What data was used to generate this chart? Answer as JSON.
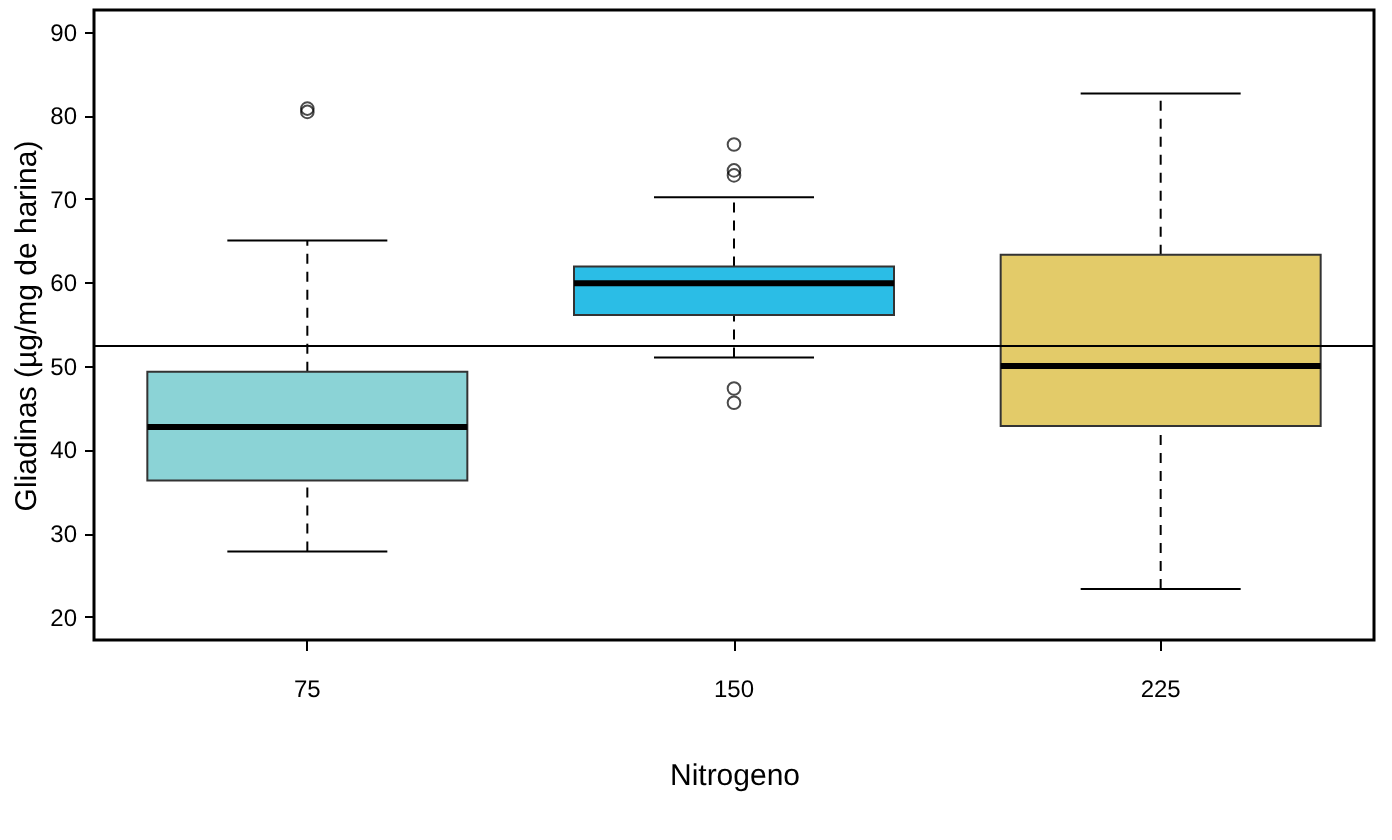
{
  "chart_data": {
    "type": "box",
    "xlabel": "Nitrogeno",
    "ylabel": "Gliadinas (µg/mg de harina)",
    "categories": [
      "75",
      "150",
      "225"
    ],
    "colors": [
      "#8bd3d6",
      "#2bbde6",
      "#e3cb69"
    ],
    "boxes": [
      {
        "low": 27.8,
        "q1": 36.3,
        "median": 42.7,
        "q3": 49.3,
        "high": 65.0,
        "outliers": [
          80.4,
          80.8
        ]
      },
      {
        "low": 51.0,
        "q1": 56.1,
        "median": 59.9,
        "q3": 61.9,
        "high": 70.2,
        "outliers": [
          76.5,
          73.4,
          72.8,
          47.3,
          45.6
        ]
      },
      {
        "low": 23.3,
        "q1": 42.8,
        "median": 50.0,
        "q3": 63.3,
        "high": 82.6
      }
    ],
    "ylim": [
      17.2,
      92.6
    ],
    "yticks": [
      20,
      30,
      40,
      50,
      60,
      70,
      80,
      90
    ],
    "ref_lines": [
      {
        "axis": "y",
        "value": 52.4
      }
    ]
  }
}
